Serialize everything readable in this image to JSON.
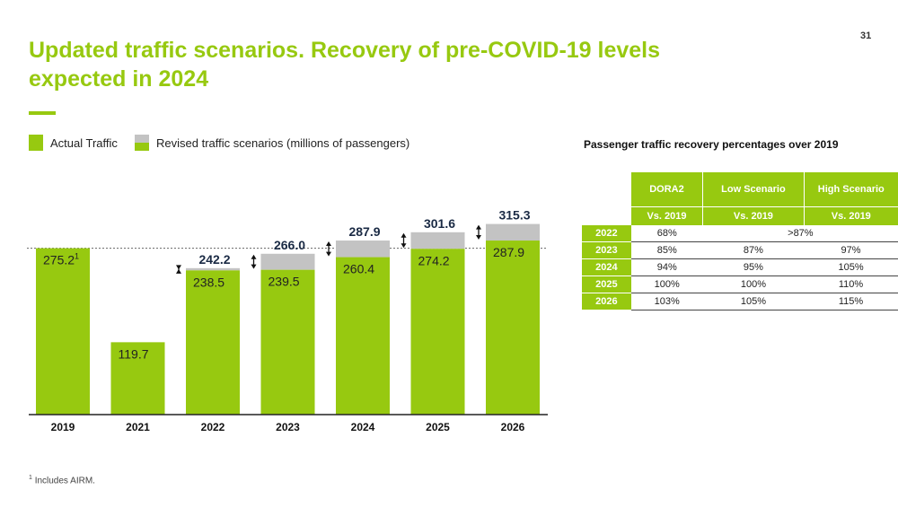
{
  "page_number": "31",
  "title": "Updated traffic scenarios. Recovery of pre-COVID-19 levels expected in 2024",
  "legend": {
    "actual_label": "Actual Traffic",
    "revised_label": "Revised traffic scenarios (millions of passengers)"
  },
  "colors": {
    "green": "#97c910",
    "grey": "#c3c3c3"
  },
  "chart_data": {
    "type": "bar",
    "title": "",
    "xlabel": "",
    "ylabel": "millions of passengers",
    "ylim": [
      0,
      330
    ],
    "categories": [
      "2019",
      "2021",
      "2022",
      "2023",
      "2024",
      "2025",
      "2026"
    ],
    "series": [
      {
        "name": "Actual Traffic",
        "values": [
          275.2,
          119.7,
          238.5,
          239.5,
          260.4,
          274.2,
          287.9
        ]
      },
      {
        "name": "Revised traffic scenarios",
        "values": [
          null,
          null,
          242.2,
          266.0,
          287.9,
          301.6,
          315.3
        ]
      }
    ],
    "inner_labels": [
      "275.2",
      "119.7",
      "238.5",
      "239.5",
      "260.4",
      "274.2",
      "287.9"
    ],
    "top_labels": [
      "",
      "",
      "242.2",
      "266.0",
      "287.9",
      "301.6",
      "315.3"
    ],
    "first_label_superscript": "1",
    "reference_line": 275.2,
    "range_arrows": true
  },
  "table": {
    "title": "Passenger traffic recovery percentages over 2019",
    "headers": [
      "DORA2",
      "Low Scenario",
      "High Scenario"
    ],
    "subheaders": [
      "Vs. 2019",
      "Vs. 2019",
      "Vs. 2019"
    ],
    "rows": [
      {
        "year": "2022",
        "dora": "68%",
        "merged": ">87%"
      },
      {
        "year": "2023",
        "dora": "85%",
        "low": "87%",
        "high": "97%"
      },
      {
        "year": "2024",
        "dora": "94%",
        "low": "95%",
        "high": "105%"
      },
      {
        "year": "2025",
        "dora": "100%",
        "low": "100%",
        "high": "110%"
      },
      {
        "year": "2026",
        "dora": "103%",
        "low": "105%",
        "high": "115%"
      }
    ]
  },
  "footnote": {
    "marker": "1",
    "text": "Includes AIRM."
  }
}
